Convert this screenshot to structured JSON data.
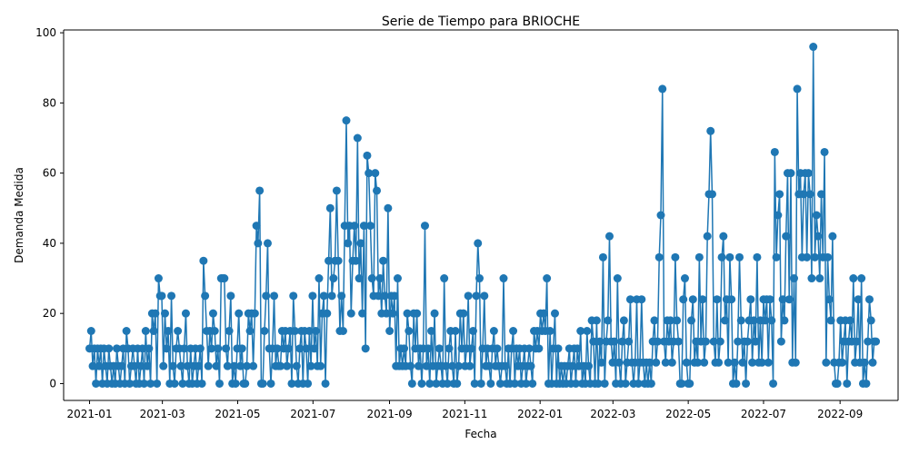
{
  "chart_data": {
    "type": "line",
    "title": "Serie de Tiempo para BRIOCHE",
    "xlabel": "Fecha",
    "ylabel": "Demanda Medida",
    "x_ticks": [
      "2021-01",
      "2021-03",
      "2021-05",
      "2021-07",
      "2021-09",
      "2021-11",
      "2022-01",
      "2022-03",
      "2022-05",
      "2022-07",
      "2022-09"
    ],
    "y_ticks": [
      "0",
      "20",
      "40",
      "60",
      "80",
      "100"
    ],
    "xlim": [
      "2020-12-11",
      "2022-10-18"
    ],
    "ylim": [
      -4.8,
      100.8
    ],
    "grid": false,
    "color": "#1f77b4",
    "series": [
      {
        "values": [
          10,
          15,
          5,
          10,
          0,
          10,
          5,
          10,
          0,
          10,
          5,
          0,
          10,
          5,
          0,
          5,
          0,
          10,
          5,
          0,
          5,
          10,
          0,
          15,
          10,
          0,
          5,
          10,
          5,
          0,
          10,
          0,
          5,
          10,
          0,
          15,
          5,
          10,
          0,
          20,
          15,
          20,
          0,
          30,
          25,
          25,
          5,
          20,
          10,
          15,
          0,
          25,
          5,
          0,
          10,
          15,
          10,
          5,
          0,
          10,
          20,
          5,
          0,
          10,
          0,
          5,
          10,
          0,
          5,
          10,
          0,
          35,
          25,
          15,
          5,
          15,
          10,
          20,
          15,
          5,
          10,
          0,
          30,
          30,
          30,
          10,
          5,
          15,
          25,
          0,
          5,
          0,
          10,
          20,
          5,
          10,
          0,
          0,
          5,
          20,
          15,
          20,
          5,
          20,
          45,
          40,
          55,
          0,
          0,
          15,
          25,
          40,
          10,
          0,
          10,
          25,
          5,
          10,
          5,
          5,
          15,
          10,
          15,
          5,
          10,
          15,
          0,
          25,
          15,
          5,
          0,
          10,
          15,
          0,
          15,
          10,
          0,
          15,
          5,
          25,
          10,
          15,
          5,
          30,
          5,
          20,
          25,
          0,
          20,
          35,
          50,
          25,
          30,
          35,
          55,
          35,
          15,
          25,
          15,
          45,
          75,
          40,
          45,
          20,
          35,
          45,
          35,
          70,
          30,
          40,
          20,
          45,
          10,
          65,
          60,
          45,
          30,
          25,
          60,
          55,
          25,
          30,
          20,
          35,
          25,
          20,
          50,
          15,
          25,
          20,
          25,
          5,
          30,
          5,
          10,
          5,
          10,
          5,
          20,
          15,
          5,
          0,
          20,
          10,
          20,
          5,
          10,
          0,
          10,
          45,
          5,
          10,
          0,
          15,
          5,
          20,
          0,
          5,
          10,
          5,
          0,
          30,
          5,
          0,
          10,
          15,
          5,
          0,
          15,
          0,
          5,
          20,
          10,
          20,
          5,
          10,
          25,
          5,
          10,
          15,
          0,
          25,
          40,
          30,
          0,
          10,
          25,
          5,
          10,
          5,
          0,
          10,
          15,
          5,
          10,
          5,
          0,
          5,
          30,
          5,
          0,
          10,
          0,
          10,
          15,
          0,
          10,
          5,
          10,
          0,
          5,
          10,
          0,
          5,
          10,
          5,
          0,
          15,
          10,
          15,
          10,
          20,
          15,
          20,
          15,
          30,
          0,
          15,
          0,
          10,
          20,
          0,
          10,
          0,
          5,
          0,
          5,
          0,
          5,
          10,
          0,
          5,
          10,
          0,
          10,
          5,
          15,
          0,
          5,
          0,
          15,
          5,
          0,
          18,
          12,
          0,
          18,
          0,
          12,
          6,
          36,
          0,
          12,
          18,
          42,
          12,
          6,
          12,
          0,
          30,
          6,
          0,
          12,
          18,
          0,
          6,
          12,
          24,
          6,
          0,
          6,
          24,
          0,
          6,
          24,
          6,
          0,
          6,
          0,
          6,
          0,
          12,
          18,
          6,
          12,
          36,
          48,
          84,
          12,
          6,
          18,
          12,
          18,
          6,
          12,
          36,
          18,
          12,
          0,
          0,
          24,
          30,
          6,
          0,
          0,
          18,
          24,
          6,
          12,
          6,
          36,
          12,
          24,
          6,
          12,
          42,
          54,
          72,
          54,
          12,
          6,
          24,
          6,
          12,
          36,
          42,
          18,
          24,
          6,
          36,
          24,
          0,
          6,
          0,
          12,
          36,
          18,
          6,
          12,
          0,
          12,
          18,
          24,
          6,
          18,
          12,
          36,
          6,
          18,
          6,
          24,
          18,
          24,
          6,
          24,
          18,
          0,
          66,
          36,
          48,
          54,
          12,
          24,
          18,
          42,
          60,
          24,
          60,
          6,
          30,
          6,
          84,
          54,
          60,
          36,
          54,
          60,
          36,
          60,
          54,
          30,
          96,
          36,
          48,
          42,
          30,
          54,
          36,
          66,
          6,
          36,
          24,
          18,
          42,
          6,
          0,
          0,
          6,
          18,
          6,
          12,
          18,
          0,
          12,
          18,
          12,
          30,
          6,
          12,
          24,
          6,
          30,
          0,
          6,
          0,
          12,
          24,
          18,
          6,
          12,
          12
        ]
      }
    ]
  }
}
